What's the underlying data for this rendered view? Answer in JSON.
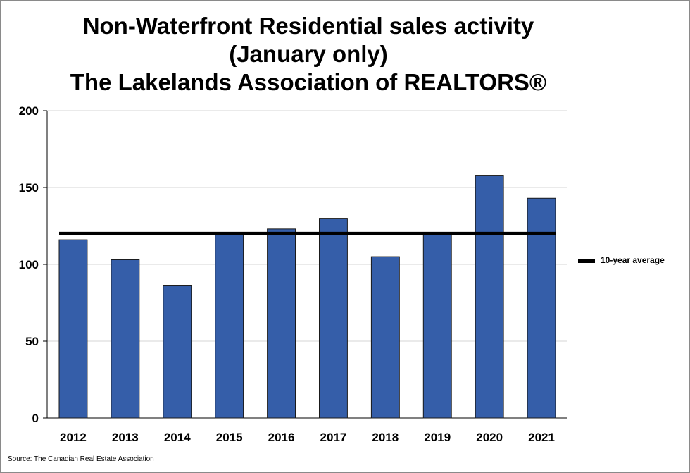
{
  "chart_data": {
    "type": "bar",
    "title": [
      "Non-Waterfront Residential sales activity",
      "(January only)",
      "The Lakelands Association of REALTORS®"
    ],
    "categories": [
      "2012",
      "2013",
      "2014",
      "2015",
      "2016",
      "2017",
      "2018",
      "2019",
      "2020",
      "2021"
    ],
    "series": [
      {
        "values": [
          116,
          103,
          86,
          120,
          123,
          130,
          105,
          120,
          158,
          143
        ],
        "color": "#355ea9"
      }
    ],
    "average_line": {
      "name": "10-year average",
      "value": 120,
      "color": "#000000"
    },
    "ylim": [
      0,
      200
    ],
    "yticks": [
      0,
      50,
      100,
      150,
      200
    ],
    "grid": true,
    "legend_position": "right",
    "source": "Source: The Canadian Real Estate Association"
  }
}
